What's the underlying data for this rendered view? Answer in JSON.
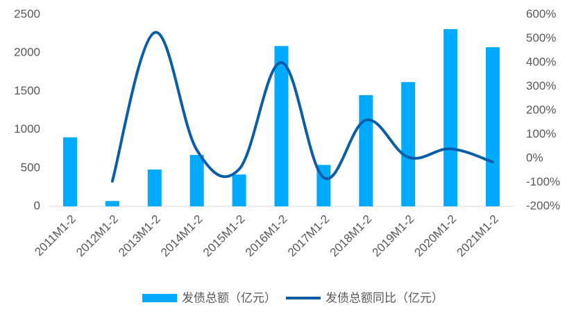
{
  "chart_data": {
    "type": "bar_line",
    "categories": [
      "2011M1-2",
      "2012M1-2",
      "2013M1-2",
      "2014M1-2",
      "2015M1-2",
      "2016M1-2",
      "2017M1-2",
      "2018M1-2",
      "2019M1-2",
      "2020M1-2",
      "2021M1-2"
    ],
    "series": [
      {
        "name": "发债总额（亿元）",
        "type": "bar",
        "color": "#00aaff",
        "values": [
          900,
          70,
          480,
          670,
          415,
          2090,
          540,
          1450,
          1620,
          2310,
          2075
        ]
      },
      {
        "name": "发债总额同比（亿元）",
        "type": "line",
        "axis": "y2",
        "color": "#0a5ea8",
        "values": [
          null,
          -95,
          525,
          35,
          -45,
          400,
          -80,
          160,
          5,
          40,
          -15
        ]
      }
    ],
    "ylim": [
      0,
      2500
    ],
    "yticks": [
      0,
      500,
      1000,
      1500,
      2000,
      2500
    ],
    "y2lim": [
      -200,
      600
    ],
    "y2ticks": [
      {
        "value": -200,
        "label": "-200%"
      },
      {
        "value": -100,
        "label": "-100%"
      },
      {
        "value": 0,
        "label": "0%"
      },
      {
        "value": 100,
        "label": "100%"
      },
      {
        "value": 200,
        "label": "200%"
      },
      {
        "value": 300,
        "label": "300%"
      },
      {
        "value": 400,
        "label": "400%"
      },
      {
        "value": 500,
        "label": "500%"
      },
      {
        "value": 600,
        "label": "600%"
      }
    ],
    "legend": "bottom"
  }
}
